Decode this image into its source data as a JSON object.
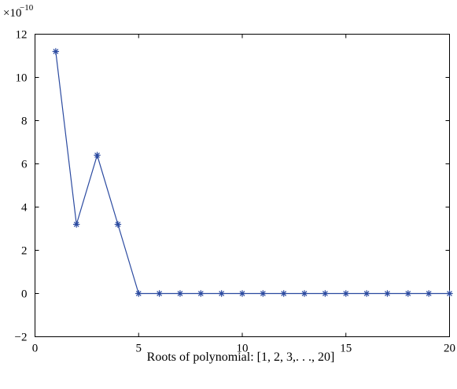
{
  "chart_data": {
    "type": "line",
    "x_axis": {
      "label": "Roots of polynomial: [1, 2, 3,. . ., 20]",
      "range": [
        0,
        20
      ],
      "ticks": [
        0,
        5,
        10,
        15,
        20
      ]
    },
    "y_axis": {
      "multiplier_base": "×10",
      "multiplier_exponent": "−10",
      "range": [
        -2,
        12
      ],
      "ticks": [
        -2,
        0,
        2,
        4,
        6,
        8,
        10,
        12
      ],
      "tick_labels": [
        "−2",
        "0",
        "2",
        "4",
        "6",
        "8",
        "10",
        "12"
      ]
    },
    "grid": false,
    "marker": "asterisk",
    "color": "#2b4aa0",
    "series": [
      {
        "x": [
          1,
          2,
          3,
          4,
          5,
          6,
          7,
          8,
          9,
          10,
          11,
          12,
          13,
          14,
          15,
          16,
          17,
          18,
          19,
          20
        ],
        "y": [
          11.2,
          3.2,
          6.4,
          3.2,
          0,
          0,
          0,
          0,
          0,
          0,
          0,
          0,
          0,
          0,
          0,
          0,
          0,
          0,
          0,
          0
        ]
      }
    ]
  }
}
